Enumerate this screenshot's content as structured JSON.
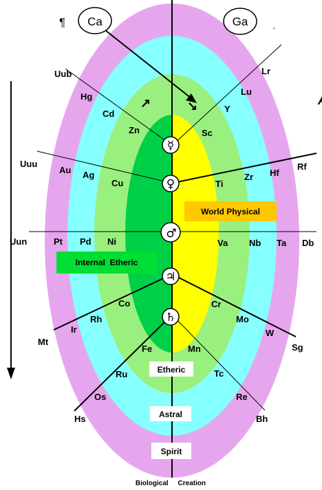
{
  "top": {
    "pilcrow": "¶",
    "left_circle": "Ca",
    "right_circle": "Ga",
    "stray_mark": "ﾞ"
  },
  "planets": {
    "mercury": "☿",
    "venus": "♀",
    "mars": "♂",
    "jupiter": "♃",
    "saturn": "♄"
  },
  "arrows": {
    "ne": "↗",
    "se": "↘"
  },
  "elements": {
    "uub": "Uub",
    "hg": "Hg",
    "cd": "Cd",
    "zn": "Zn",
    "lr": "Lr",
    "lu": "Lu",
    "y": "Y",
    "sc": "Sc",
    "uuu": "Uuu",
    "au": "Au",
    "ag": "Ag",
    "cu": "Cu",
    "ti": "Ti",
    "zr": "Zr",
    "hf": "Hf",
    "rf": "Rf",
    "uun": "Uun",
    "pt": "Pt",
    "pd": "Pd",
    "ni": "Ni",
    "va": "Va",
    "nb": "Nb",
    "ta": "Ta",
    "db": "Db",
    "co": "Co",
    "rh": "Rh",
    "ir": "Ir",
    "mt": "Mt",
    "cr": "Cr",
    "mo": "Mo",
    "w": "W",
    "sg": "Sg",
    "fe": "Fe",
    "ru": "Ru",
    "os": "Os",
    "hs": "Hs",
    "mn": "Mn",
    "tc": "Tc",
    "re": "Re",
    "bh": "Bh"
  },
  "boxes": {
    "world_physical": "World Physical",
    "internal_etheric": "Internal  Etheric",
    "etheric": "Etheric",
    "astral": "Astral",
    "spirit": "Spirit"
  },
  "caption": "Biological     Creation",
  "corner_mark": "A",
  "colors": {
    "spirit_ring": "#e6a6ee",
    "astral_ring": "#86ffff",
    "etheric_ring": "#9af07e",
    "internal_etheric": "#00d048",
    "world_physical": "#ffff00",
    "world_physical_box": "#ffc800",
    "internal_etheric_box": "#00dd33"
  }
}
